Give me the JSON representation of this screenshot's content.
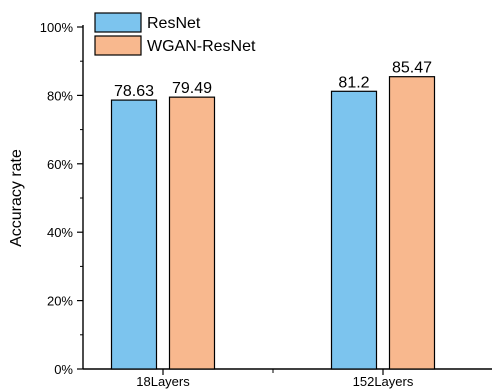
{
  "chart_data": {
    "type": "bar",
    "categories": [
      "18Layers",
      "152Layers"
    ],
    "series": [
      {
        "name": "ResNet",
        "values": [
          78.63,
          81.2
        ],
        "color": "#7cc4ee"
      },
      {
        "name": "WGAN-ResNet",
        "values": [
          79.49,
          85.47
        ],
        "color": "#f8b88e"
      }
    ],
    "data_labels": [
      [
        "78.63",
        "81.2"
      ],
      [
        "79.49",
        "85.47"
      ]
    ],
    "ylabel": "Accuracy rate",
    "xlabel": "",
    "ylim": [
      0,
      100
    ],
    "yticks": [
      0,
      20,
      40,
      60,
      80,
      100
    ],
    "ytick_labels": [
      "0%",
      "20%",
      "40%",
      "60%",
      "80%",
      "100%"
    ],
    "legend_position": "top-left",
    "grid": false
  }
}
